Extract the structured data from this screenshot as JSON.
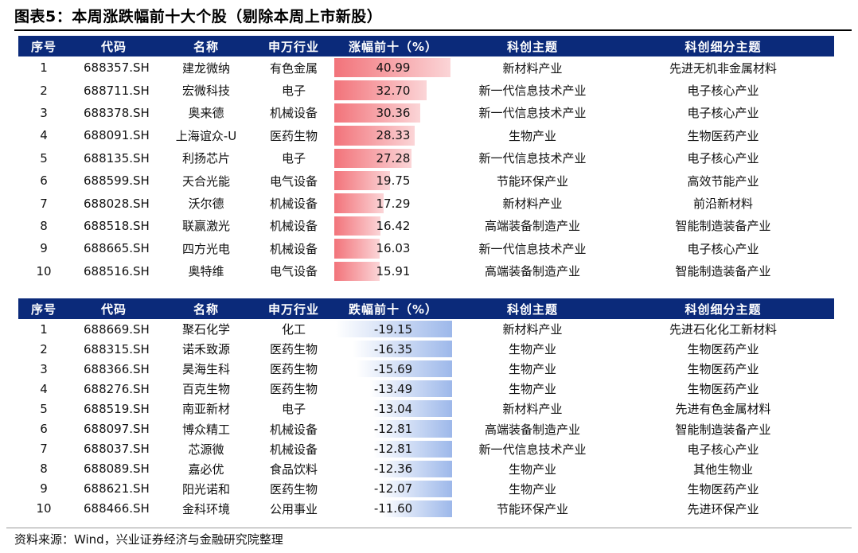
{
  "title": "图表5：本周涨跌幅前十大个股（剔除本周上市新股）",
  "top_table": {
    "headers": [
      "序号",
      "代码",
      "名称",
      "申万行业",
      "涨幅前十（%）",
      "科创主题",
      "科创细分主题"
    ],
    "rows": [
      {
        "no": "1",
        "code": "688357.SH",
        "name": "建龙微纳",
        "industry": "有色金属",
        "change": "40.99",
        "value": 40.99,
        "theme": "新材料产业",
        "sub_theme": "先进无机非金属材料"
      },
      {
        "no": "2",
        "code": "688711.SH",
        "name": "宏微科技",
        "industry": "电子",
        "change": "32.70",
        "value": 32.7,
        "theme": "新一代信息技术产业",
        "sub_theme": "电子核心产业"
      },
      {
        "no": "3",
        "code": "688378.SH",
        "name": "奥来德",
        "industry": "机械设备",
        "change": "30.36",
        "value": 30.36,
        "theme": "新一代信息技术产业",
        "sub_theme": "电子核心产业"
      },
      {
        "no": "4",
        "code": "688091.SH",
        "name": "上海谊众-U",
        "industry": "医药生物",
        "change": "28.33",
        "value": 28.33,
        "theme": "生物产业",
        "sub_theme": "生物医药产业"
      },
      {
        "no": "5",
        "code": "688135.SH",
        "name": "利扬芯片",
        "industry": "电子",
        "change": "27.28",
        "value": 27.28,
        "theme": "新一代信息技术产业",
        "sub_theme": "电子核心产业"
      },
      {
        "no": "6",
        "code": "688599.SH",
        "name": "天合光能",
        "industry": "电气设备",
        "change": "19.75",
        "value": 19.75,
        "theme": "节能环保产业",
        "sub_theme": "高效节能产业"
      },
      {
        "no": "7",
        "code": "688028.SH",
        "name": "沃尔德",
        "industry": "机械设备",
        "change": "17.29",
        "value": 17.29,
        "theme": "新材料产业",
        "sub_theme": "前沿新材料"
      },
      {
        "no": "8",
        "code": "688518.SH",
        "name": "联赢激光",
        "industry": "机械设备",
        "change": "16.42",
        "value": 16.42,
        "theme": "高端装备制造产业",
        "sub_theme": "智能制造装备产业"
      },
      {
        "no": "9",
        "code": "688665.SH",
        "name": "四方光电",
        "industry": "机械设备",
        "change": "16.03",
        "value": 16.03,
        "theme": "新一代信息技术产业",
        "sub_theme": "电子核心产业"
      },
      {
        "no": "10",
        "code": "688516.SH",
        "name": "奥特维",
        "industry": "电气设备",
        "change": "15.91",
        "value": 15.91,
        "theme": "高端装备制造产业",
        "sub_theme": "智能制造装备产业"
      }
    ]
  },
  "bottom_table": {
    "headers": [
      "序号",
      "代码",
      "名称",
      "申万行业",
      "跌幅前十（%）",
      "科创主题",
      "科创细分主题"
    ],
    "rows": [
      {
        "no": "1",
        "code": "688669.SH",
        "name": "聚石化学",
        "industry": "化工",
        "change": "-19.15",
        "value": -19.15,
        "theme": "新材料产业",
        "sub_theme": "先进石化化工新材料"
      },
      {
        "no": "2",
        "code": "688315.SH",
        "name": "诺禾致源",
        "industry": "医药生物",
        "change": "-16.35",
        "value": -16.35,
        "theme": "生物产业",
        "sub_theme": "生物医药产业"
      },
      {
        "no": "3",
        "code": "688366.SH",
        "name": "昊海生科",
        "industry": "医药生物",
        "change": "-15.69",
        "value": -15.69,
        "theme": "生物产业",
        "sub_theme": "生物医药产业"
      },
      {
        "no": "4",
        "code": "688276.SH",
        "name": "百克生物",
        "industry": "医药生物",
        "change": "-13.49",
        "value": -13.49,
        "theme": "生物产业",
        "sub_theme": "生物医药产业"
      },
      {
        "no": "5",
        "code": "688519.SH",
        "name": "南亚新材",
        "industry": "电子",
        "change": "-13.04",
        "value": -13.04,
        "theme": "新材料产业",
        "sub_theme": "先进有色金属材料"
      },
      {
        "no": "6",
        "code": "688097.SH",
        "name": "博众精工",
        "industry": "机械设备",
        "change": "-12.81",
        "value": -12.81,
        "theme": "高端装备制造产业",
        "sub_theme": "智能制造装备产业"
      },
      {
        "no": "7",
        "code": "688037.SH",
        "name": "芯源微",
        "industry": "机械设备",
        "change": "-12.81",
        "value": -12.81,
        "theme": "新一代信息技术产业",
        "sub_theme": "电子核心产业"
      },
      {
        "no": "8",
        "code": "688089.SH",
        "name": "嘉必优",
        "industry": "食品饮料",
        "change": "-12.36",
        "value": -12.36,
        "theme": "生物产业",
        "sub_theme": "其他生物业"
      },
      {
        "no": "9",
        "code": "688621.SH",
        "name": "阳光诺和",
        "industry": "医药生物",
        "change": "-12.07",
        "value": -12.07,
        "theme": "生物产业",
        "sub_theme": "生物医药产业"
      },
      {
        "no": "10",
        "code": "688466.SH",
        "name": "金科环境",
        "industry": "公用事业",
        "change": "-11.60",
        "value": -11.6,
        "theme": "节能环保产业",
        "sub_theme": "先进环保产业"
      }
    ]
  },
  "source": "资料来源：Wind，兴业证券经济与金融研究院整理"
}
